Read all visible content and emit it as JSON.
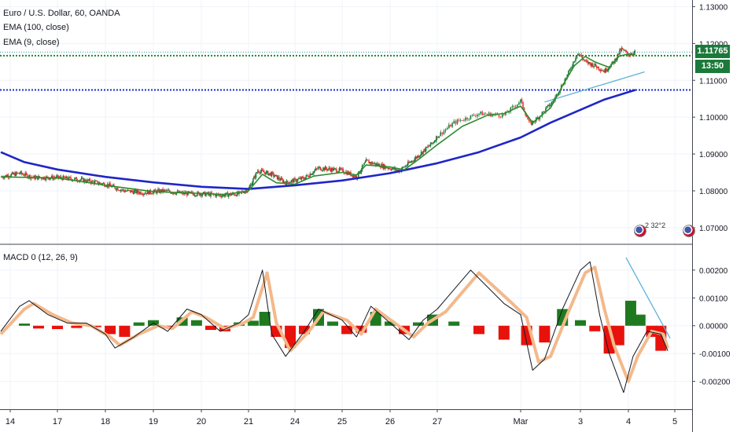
{
  "legend": {
    "symbol": "Euro / U.S. Dollar, 60, OANDA",
    "ema100": "EMA (100, close)",
    "ema9": "EMA (9, close)",
    "macd": "MACD 0 (12, 26, 9)"
  },
  "price_badge": {
    "price": "1.11765",
    "countdown": "13:50"
  },
  "event_marker": "2 32°2",
  "colors": {
    "up": "#26a69a",
    "candle_up": "#1b7a3a",
    "candle_down": "#e53935",
    "ema100": "#1f26c7",
    "ema9": "#2e8b2e",
    "level_blue": "#1a2bd8",
    "level_green": "#2e7d32",
    "hist_pos": "#1f7a1f",
    "hist_neg": "#e8120c",
    "macd_line": "#131722",
    "signal": "#f3b98b",
    "trendline": "#5fb2d9",
    "badge_bg": "#1b7a3a"
  },
  "chart_data": [
    {
      "type": "candlestick",
      "y_axis_ticks": [
        "1.13000",
        "1.12000",
        "1.11000",
        "1.10000",
        "1.09000",
        "1.08000",
        "1.07000"
      ],
      "ylim": [
        1.0655,
        1.1318
      ],
      "x_axis_ticks": [
        "14",
        "17",
        "18",
        "19",
        "20",
        "21",
        "24",
        "25",
        "26",
        "27",
        "Mar",
        "3",
        "4",
        "5"
      ],
      "x_tick_index": [
        0,
        1,
        2,
        3,
        4,
        5,
        6,
        7,
        8,
        9,
        10,
        11,
        12,
        13
      ],
      "levels": [
        {
          "name": "last-price",
          "value": 1.11765
        },
        {
          "name": "green-support",
          "value": 1.1167
        },
        {
          "name": "blue-support",
          "value": 1.1074
        }
      ],
      "trendline": {
        "from": {
          "day": 10.4,
          "value": 1.1041
        },
        "to": {
          "day": 12.35,
          "value": 1.1123
        }
      },
      "ema100": [
        [
          -0.2,
          1.0905
        ],
        [
          0.3,
          1.0878
        ],
        [
          1,
          1.0858
        ],
        [
          2,
          1.0838
        ],
        [
          3,
          1.0823
        ],
        [
          4,
          1.0811
        ],
        [
          5,
          1.0805
        ],
        [
          6,
          1.0815
        ],
        [
          7,
          1.0828
        ],
        [
          8,
          1.0848
        ],
        [
          9,
          1.0875
        ],
        [
          9.5,
          1.0905
        ],
        [
          10,
          1.0945
        ],
        [
          10.5,
          1.0985
        ],
        [
          11,
          1.102
        ],
        [
          11.5,
          1.1048
        ],
        [
          12,
          1.1068
        ],
        [
          12.15,
          1.1074
        ]
      ],
      "ema9": [
        [
          -0.2,
          1.0838
        ],
        [
          1,
          1.0835
        ],
        [
          2,
          1.0815
        ],
        [
          3,
          1.0798
        ],
        [
          4,
          1.0793
        ],
        [
          4.5,
          1.079
        ],
        [
          5,
          1.08
        ],
        [
          5.3,
          1.0845
        ],
        [
          5.6,
          1.0822
        ],
        [
          6,
          1.0818
        ],
        [
          6.4,
          1.084
        ],
        [
          7,
          1.085
        ],
        [
          7.3,
          1.0843
        ],
        [
          7.5,
          1.087
        ],
        [
          8,
          1.0865
        ],
        [
          8.3,
          1.0857
        ],
        [
          8.6,
          1.0885
        ],
        [
          9,
          1.0925
        ],
        [
          9.3,
          1.0975
        ],
        [
          9.6,
          1.1005
        ],
        [
          9.8,
          1.101
        ],
        [
          10,
          1.103
        ],
        [
          10.2,
          1.0985
        ],
        [
          10.5,
          1.1025
        ],
        [
          10.7,
          1.1085
        ],
        [
          10.9,
          1.114
        ],
        [
          11.1,
          1.1165
        ],
        [
          11.3,
          1.115
        ],
        [
          11.6,
          1.1135
        ],
        [
          11.8,
          1.1165
        ],
        [
          12.0,
          1.1172
        ],
        [
          12.15,
          1.117
        ]
      ],
      "price_path": [
        [
          -0.2,
          1.0838
        ],
        [
          0.2,
          1.0848
        ],
        [
          0.5,
          1.0836
        ],
        [
          1,
          1.0836
        ],
        [
          1.5,
          1.083
        ],
        [
          2,
          1.0818
        ],
        [
          2.4,
          1.08
        ],
        [
          2.8,
          1.0795
        ],
        [
          3.2,
          1.08
        ],
        [
          3.6,
          1.0793
        ],
        [
          4,
          1.0792
        ],
        [
          4.4,
          1.0788
        ],
        [
          4.8,
          1.0792
        ],
        [
          5,
          1.0805
        ],
        [
          5.2,
          1.0855
        ],
        [
          5.5,
          1.0845
        ],
        [
          5.8,
          1.0822
        ],
        [
          6.2,
          1.0835
        ],
        [
          6.5,
          1.0862
        ],
        [
          7,
          1.0855
        ],
        [
          7.3,
          1.0838
        ],
        [
          7.5,
          1.088
        ],
        [
          7.9,
          1.0865
        ],
        [
          8.2,
          1.0855
        ],
        [
          8.5,
          1.0885
        ],
        [
          8.9,
          1.093
        ],
        [
          9.2,
          1.0985
        ],
        [
          9.5,
          1.101
        ],
        [
          9.8,
          1.1005
        ],
        [
          10,
          1.1045
        ],
        [
          10.15,
          1.098
        ],
        [
          10.3,
          1.1
        ],
        [
          10.55,
          1.1045
        ],
        [
          10.8,
          1.112
        ],
        [
          10.95,
          1.1175
        ],
        [
          11.1,
          1.115
        ],
        [
          11.3,
          1.114
        ],
        [
          11.5,
          1.1125
        ],
        [
          11.7,
          1.115
        ],
        [
          11.85,
          1.1185
        ],
        [
          12.0,
          1.117
        ],
        [
          12.15,
          1.1176
        ]
      ]
    },
    {
      "type": "macd",
      "title": "MACD 0 (12, 26, 9)",
      "y_axis_ticks": [
        "0.00200",
        "0.00100",
        "0.00000",
        "-0.00100",
        "-0.00200"
      ],
      "ylim": [
        -0.003,
        0.0029
      ],
      "trendline": {
        "from": {
          "day": 11.95,
          "value": 0.00245
        },
        "to": {
          "day": 12.9,
          "value": -0.00045
        }
      },
      "macd": [
        [
          -0.2,
          -0.0002
        ],
        [
          0.2,
          0.0007
        ],
        [
          0.4,
          0.0009
        ],
        [
          0.8,
          0.0004
        ],
        [
          1.2,
          0.0001
        ],
        [
          1.6,
          0.0001
        ],
        [
          2,
          -0.0003
        ],
        [
          2.2,
          -0.0008
        ],
        [
          2.6,
          -0.0004
        ],
        [
          3,
          0.0001
        ],
        [
          3.3,
          -0.0002
        ],
        [
          3.7,
          0.0006
        ],
        [
          4,
          0.0004
        ],
        [
          4.4,
          -0.0002
        ],
        [
          4.8,
          0.0001
        ],
        [
          5,
          0.0004
        ],
        [
          5.3,
          0.002
        ],
        [
          5.5,
          -0.0003
        ],
        [
          5.8,
          -0.0011
        ],
        [
          6.2,
          -0.0002
        ],
        [
          6.5,
          0.0006
        ],
        [
          7,
          0.0002
        ],
        [
          7.3,
          -0.0004
        ],
        [
          7.6,
          0.0007
        ],
        [
          8,
          0.0001
        ],
        [
          8.4,
          -0.0005
        ],
        [
          8.7,
          0.0002
        ],
        [
          9,
          0.0006
        ],
        [
          9.4,
          0.002
        ],
        [
          9.8,
          0.0008
        ],
        [
          10,
          0.0004
        ],
        [
          10.2,
          -0.0016
        ],
        [
          10.4,
          -0.0012
        ],
        [
          10.7,
          0.0006
        ],
        [
          11,
          0.002
        ],
        [
          11.2,
          0.0023
        ],
        [
          11.4,
          0.0004
        ],
        [
          11.6,
          -0.001
        ],
        [
          11.9,
          -0.0024
        ],
        [
          12.1,
          -0.0011
        ],
        [
          12.4,
          -0.0002
        ],
        [
          12.7,
          -0.0003
        ],
        [
          12.85,
          -0.0009
        ]
      ],
      "signal": [
        [
          -0.2,
          -0.0003
        ],
        [
          0.3,
          0.0006
        ],
        [
          0.5,
          0.0008
        ],
        [
          0.9,
          0.0004
        ],
        [
          1.3,
          0.0001
        ],
        [
          1.7,
          0.0
        ],
        [
          2.1,
          -0.0004
        ],
        [
          2.3,
          -0.0007
        ],
        [
          2.7,
          -0.0003
        ],
        [
          3.1,
          0.0
        ],
        [
          3.4,
          -0.0001
        ],
        [
          3.8,
          0.0005
        ],
        [
          4.1,
          0.0003
        ],
        [
          4.5,
          -0.0001
        ],
        [
          4.9,
          0.0001
        ],
        [
          5.1,
          0.0003
        ],
        [
          5.4,
          0.0019
        ],
        [
          5.6,
          0.0001
        ],
        [
          5.9,
          -0.0009
        ],
        [
          6.3,
          -0.0002
        ],
        [
          6.6,
          0.0005
        ],
        [
          7.1,
          0.0002
        ],
        [
          7.4,
          -0.0003
        ],
        [
          7.7,
          0.0006
        ],
        [
          8.1,
          0.0001
        ],
        [
          8.5,
          -0.0004
        ],
        [
          8.8,
          0.0001
        ],
        [
          9.1,
          0.0005
        ],
        [
          9.5,
          0.0019
        ],
        [
          9.9,
          0.0008
        ],
        [
          10.1,
          0.0003
        ],
        [
          10.3,
          -0.0013
        ],
        [
          10.5,
          -0.0011
        ],
        [
          10.8,
          0.0005
        ],
        [
          11.1,
          0.0019
        ],
        [
          11.3,
          0.0021
        ],
        [
          11.5,
          0.0006
        ],
        [
          11.7,
          -0.0007
        ],
        [
          12.0,
          -0.002
        ],
        [
          12.2,
          -0.0011
        ],
        [
          12.5,
          -0.0002
        ],
        [
          12.75,
          -0.0003
        ],
        [
          12.85,
          -0.0008
        ]
      ],
      "histogram": [
        [
          0.3,
          8e-05
        ],
        [
          0.6,
          -0.0001
        ],
        [
          1.0,
          -0.00012
        ],
        [
          1.4,
          -8e-05
        ],
        [
          1.8,
          -5e-05
        ],
        [
          2.1,
          -0.0003
        ],
        [
          2.4,
          -0.0004
        ],
        [
          2.7,
          0.00012
        ],
        [
          3.0,
          0.0002
        ],
        [
          3.3,
          -0.0001
        ],
        [
          3.6,
          0.0003
        ],
        [
          3.9,
          0.0002
        ],
        [
          4.2,
          -0.00015
        ],
        [
          4.5,
          -0.0002
        ],
        [
          4.8,
          0.00012
        ],
        [
          5.1,
          0.00018
        ],
        [
          5.35,
          0.0005
        ],
        [
          5.6,
          -0.0004
        ],
        [
          5.9,
          -0.0008
        ],
        [
          6.2,
          -0.0003
        ],
        [
          6.5,
          0.0006
        ],
        [
          6.8,
          0.00015
        ],
        [
          7.1,
          -0.0003
        ],
        [
          7.4,
          -0.00025
        ],
        [
          7.7,
          0.0005
        ],
        [
          8.0,
          0.00015
        ],
        [
          8.3,
          -0.0003
        ],
        [
          8.6,
          0.00012
        ],
        [
          8.9,
          0.0004
        ],
        [
          9.2,
          0.00015
        ],
        [
          9.5,
          -0.0003
        ],
        [
          9.8,
          -0.0005
        ],
        [
          10.1,
          -0.0007
        ],
        [
          10.4,
          -0.0006
        ],
        [
          10.7,
          0.0006
        ],
        [
          11.0,
          0.0002
        ],
        [
          11.3,
          -0.0002
        ],
        [
          11.6,
          -0.001
        ],
        [
          11.8,
          -0.0007
        ],
        [
          12.05,
          0.0009
        ],
        [
          12.25,
          0.0004
        ],
        [
          12.5,
          -0.0004
        ],
        [
          12.7,
          -0.0009
        ]
      ]
    }
  ]
}
